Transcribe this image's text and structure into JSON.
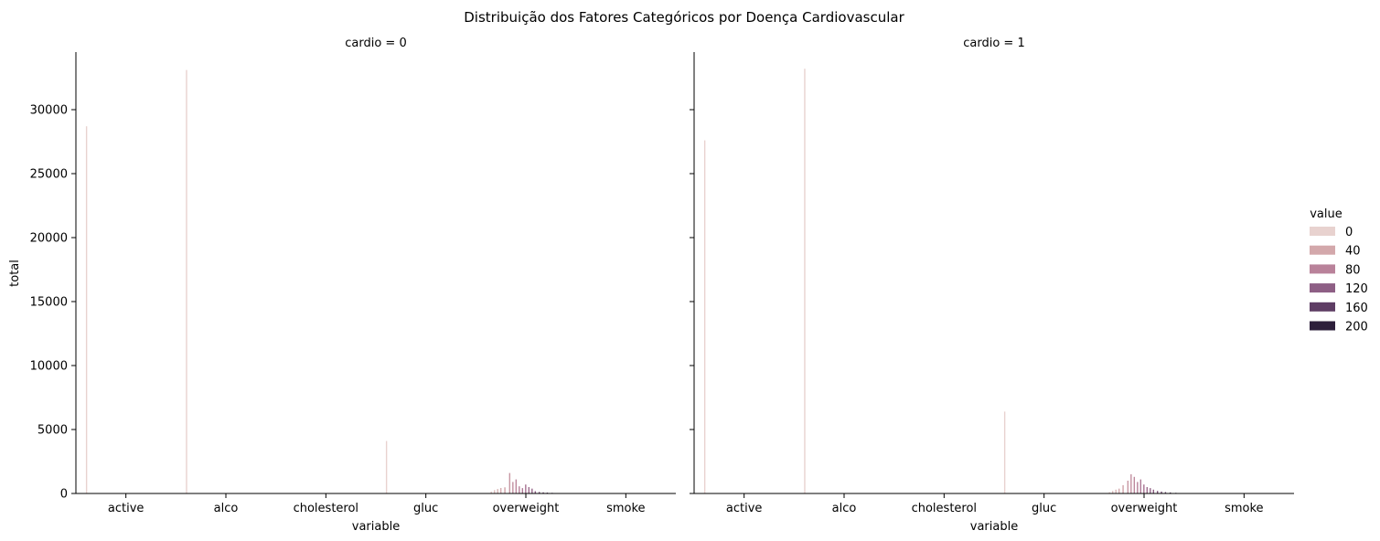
{
  "suptitle": "Distribuição dos Fatores Categóricos por Doença Cardiovascular",
  "chart_data": {
    "type": "bar",
    "title": "Distribuição dos Fatores Categóricos por Doença Cardiovascular",
    "xlabel": "variable",
    "ylabel": "total",
    "categories": [
      "active",
      "alco",
      "cholesterol",
      "gluc",
      "overweight",
      "smoke"
    ],
    "ylim": [
      0,
      34500
    ],
    "yticks": [
      0,
      5000,
      10000,
      15000,
      20000,
      25000,
      30000
    ],
    "grid": false,
    "legend": {
      "title": "value",
      "placement": "right",
      "entries": [
        {
          "label": "0",
          "color": "#e8d2cf"
        },
        {
          "label": "40",
          "color": "#d3a8ab"
        },
        {
          "label": "80",
          "color": "#b9829a"
        },
        {
          "label": "120",
          "color": "#8e5f85"
        },
        {
          "label": "160",
          "color": "#5e3d64"
        },
        {
          "label": "200",
          "color": "#2d1f3b"
        }
      ]
    },
    "hue_domain": [
      0,
      200
    ],
    "facets": [
      {
        "title": "cardio = 0",
        "bars": [
          {
            "category": "active",
            "hue": 0,
            "value": 28700
          },
          {
            "category": "alco",
            "hue": 0,
            "value": 33100
          },
          {
            "category": "cholesterol",
            "hue": 0,
            "value": 0
          },
          {
            "category": "gluc",
            "hue": 0,
            "value": 4100
          },
          {
            "category": "overweight",
            "hue": 12,
            "value": 150
          },
          {
            "category": "overweight",
            "hue": 20,
            "value": 260
          },
          {
            "category": "overweight",
            "hue": 28,
            "value": 350
          },
          {
            "category": "overweight",
            "hue": 36,
            "value": 430
          },
          {
            "category": "overweight",
            "hue": 46,
            "value": 480
          },
          {
            "category": "overweight",
            "hue": 58,
            "value": 1600
          },
          {
            "category": "overweight",
            "hue": 66,
            "value": 900
          },
          {
            "category": "overweight",
            "hue": 74,
            "value": 1100
          },
          {
            "category": "overweight",
            "hue": 82,
            "value": 560
          },
          {
            "category": "overweight",
            "hue": 90,
            "value": 420
          },
          {
            "category": "overweight",
            "hue": 98,
            "value": 700
          },
          {
            "category": "overweight",
            "hue": 106,
            "value": 500
          },
          {
            "category": "overweight",
            "hue": 114,
            "value": 380
          },
          {
            "category": "overweight",
            "hue": 122,
            "value": 180
          },
          {
            "category": "overweight",
            "hue": 132,
            "value": 120
          },
          {
            "category": "overweight",
            "hue": 142,
            "value": 90
          },
          {
            "category": "overweight",
            "hue": 152,
            "value": 70
          },
          {
            "category": "overweight",
            "hue": 164,
            "value": 50
          },
          {
            "category": "overweight",
            "hue": 178,
            "value": 30
          },
          {
            "category": "overweight",
            "hue": 192,
            "value": 20
          },
          {
            "category": "smoke",
            "hue": 0,
            "value": 0
          }
        ]
      },
      {
        "title": "cardio = 1",
        "bars": [
          {
            "category": "active",
            "hue": 0,
            "value": 27600
          },
          {
            "category": "alco",
            "hue": 0,
            "value": 33200
          },
          {
            "category": "cholesterol",
            "hue": 0,
            "value": 0
          },
          {
            "category": "gluc",
            "hue": 0,
            "value": 6400
          },
          {
            "category": "overweight",
            "hue": 12,
            "value": 100
          },
          {
            "category": "overweight",
            "hue": 20,
            "value": 200
          },
          {
            "category": "overweight",
            "hue": 28,
            "value": 300
          },
          {
            "category": "overweight",
            "hue": 36,
            "value": 380
          },
          {
            "category": "overweight",
            "hue": 46,
            "value": 650
          },
          {
            "category": "overweight",
            "hue": 58,
            "value": 1000
          },
          {
            "category": "overweight",
            "hue": 66,
            "value": 1500
          },
          {
            "category": "overweight",
            "hue": 74,
            "value": 1300
          },
          {
            "category": "overweight",
            "hue": 82,
            "value": 900
          },
          {
            "category": "overweight",
            "hue": 90,
            "value": 1100
          },
          {
            "category": "overweight",
            "hue": 98,
            "value": 700
          },
          {
            "category": "overweight",
            "hue": 106,
            "value": 500
          },
          {
            "category": "overweight",
            "hue": 114,
            "value": 420
          },
          {
            "category": "overweight",
            "hue": 122,
            "value": 300
          },
          {
            "category": "overweight",
            "hue": 132,
            "value": 200
          },
          {
            "category": "overweight",
            "hue": 142,
            "value": 150
          },
          {
            "category": "overweight",
            "hue": 152,
            "value": 110
          },
          {
            "category": "overweight",
            "hue": 164,
            "value": 80
          },
          {
            "category": "overweight",
            "hue": 178,
            "value": 50
          },
          {
            "category": "overweight",
            "hue": 192,
            "value": 30
          },
          {
            "category": "smoke",
            "hue": 0,
            "value": 0
          }
        ]
      }
    ]
  }
}
